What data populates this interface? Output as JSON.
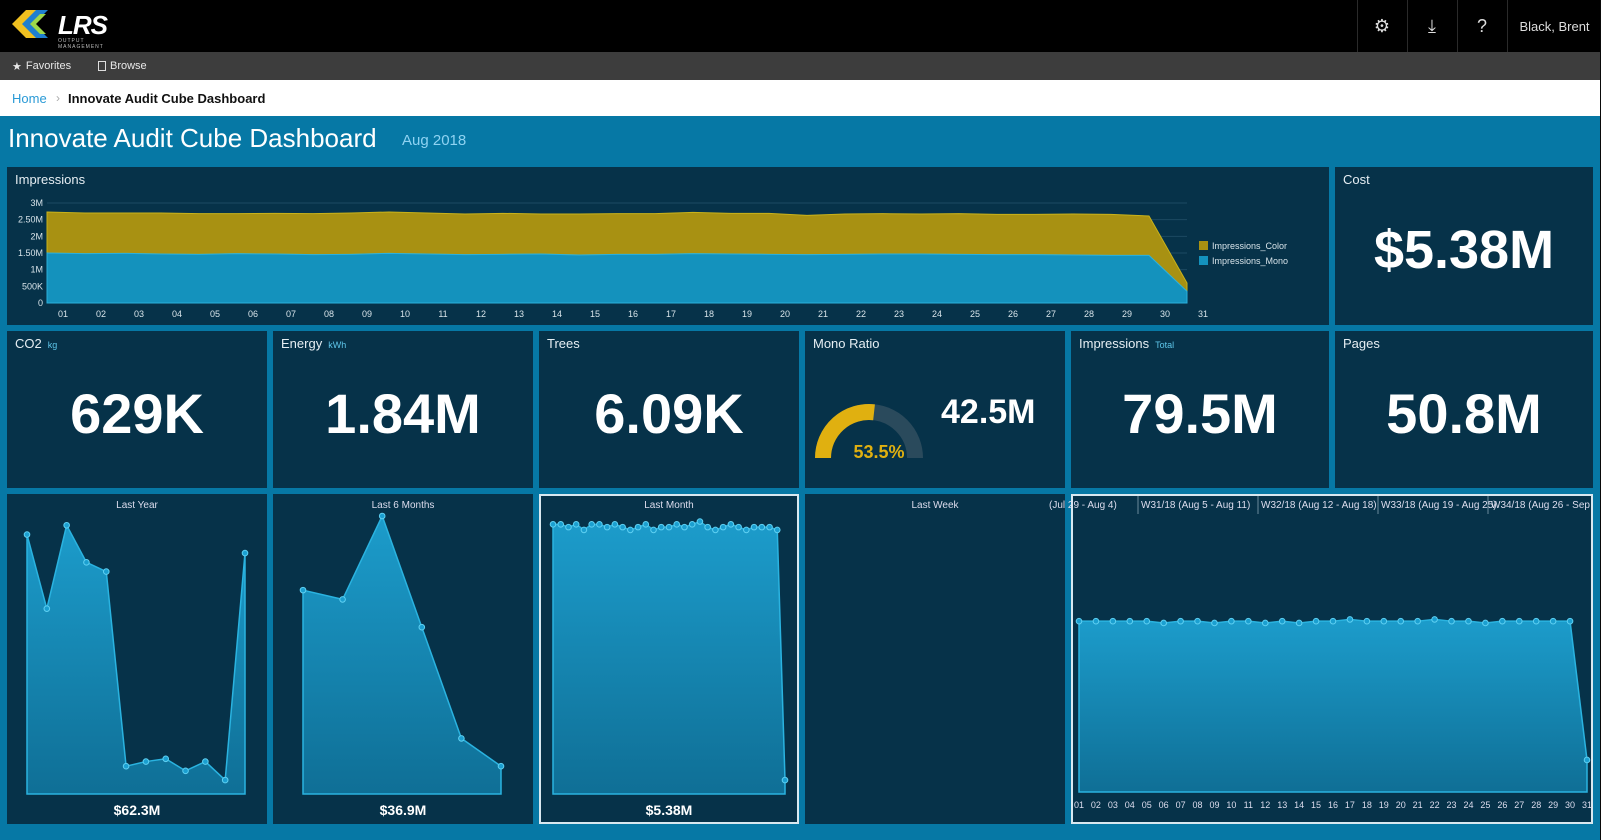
{
  "app": {
    "logo_text": "LRS",
    "logo_subtext": "OUTPUT MANAGEMENT",
    "user_name": "Black, Brent"
  },
  "nav": {
    "favorites": "Favorites",
    "browse": "Browse"
  },
  "breadcrumb": {
    "home": "Home",
    "current": "Innovate Audit Cube Dashboard"
  },
  "dashboard": {
    "title": "Innovate Audit Cube Dashboard",
    "period": "Aug 2018"
  },
  "colors": {
    "accent": "#0678a5",
    "tile": "#063249",
    "mono": "#1492bd",
    "color": "#a89112",
    "gauge": "#e0b010"
  },
  "impressions_chart": {
    "title": "Impressions",
    "legend": [
      "Impressions_Color",
      "Impressions_Mono"
    ]
  },
  "cost": {
    "title": "Cost",
    "value": "$5.38M"
  },
  "kpis": {
    "co2": {
      "title": "CO2",
      "unit": "kg",
      "value": "629K"
    },
    "energy": {
      "title": "Energy",
      "unit": "kWh",
      "value": "1.84M"
    },
    "trees": {
      "title": "Trees",
      "value": "6.09K"
    },
    "mono_ratio": {
      "title": "Mono Ratio",
      "percent_label": "53.5%",
      "value": "42.5M"
    },
    "impressions": {
      "title": "Impressions",
      "unit": "Total",
      "value": "79.5M"
    },
    "pages": {
      "title": "Pages",
      "value": "50.8M"
    }
  },
  "sparks": {
    "last_year": {
      "title": "Last Year",
      "total": "$62.3M"
    },
    "last_6_months": {
      "title": "Last 6 Months",
      "total": "$36.9M"
    },
    "last_month": {
      "title": "Last Month",
      "total": "$5.38M"
    },
    "last_week": {
      "title": "Last Week"
    }
  },
  "weekly": {
    "headers": [
      "(Jul 29 - Aug 4)",
      "W31/18 (Aug 5 - Aug 11)",
      "W32/18 (Aug 12 - Aug 18)",
      "W33/18 (Aug 19 - Aug 25)",
      "W34/18 (Aug 26 - Sep"
    ],
    "days": [
      "01",
      "02",
      "03",
      "04",
      "05",
      "06",
      "07",
      "08",
      "09",
      "10",
      "11",
      "12",
      "13",
      "14",
      "15",
      "16",
      "17",
      "18",
      "19",
      "20",
      "21",
      "22",
      "23",
      "24",
      "25",
      "26",
      "27",
      "28",
      "29",
      "30",
      "31"
    ]
  },
  "chart_data": [
    {
      "type": "area",
      "title": "Impressions",
      "x": [
        "01",
        "02",
        "03",
        "04",
        "05",
        "06",
        "07",
        "08",
        "09",
        "10",
        "11",
        "12",
        "13",
        "14",
        "15",
        "16",
        "17",
        "18",
        "19",
        "20",
        "21",
        "22",
        "23",
        "24",
        "25",
        "26",
        "27",
        "28",
        "29",
        "30",
        "31"
      ],
      "y_ticks": [
        "0",
        "500K",
        "1M",
        "1.50M",
        "2M",
        "2.50M",
        "3M"
      ],
      "ylim": [
        0,
        3000000
      ],
      "stacked": true,
      "legend_position": "right",
      "series": [
        {
          "name": "Impressions_Mono",
          "values": [
            1500000,
            1480000,
            1490000,
            1470000,
            1460000,
            1480000,
            1470000,
            1450000,
            1460000,
            1490000,
            1470000,
            1450000,
            1460000,
            1470000,
            1440000,
            1460000,
            1460000,
            1480000,
            1470000,
            1460000,
            1450000,
            1460000,
            1470000,
            1470000,
            1460000,
            1450000,
            1450000,
            1440000,
            1430000,
            1430000,
            350000
          ]
        },
        {
          "name": "Impressions_Color",
          "values": [
            1230000,
            1220000,
            1210000,
            1230000,
            1220000,
            1200000,
            1220000,
            1230000,
            1240000,
            1240000,
            1230000,
            1220000,
            1230000,
            1200000,
            1230000,
            1220000,
            1220000,
            1240000,
            1220000,
            1230000,
            1180000,
            1210000,
            1210000,
            1200000,
            1220000,
            1210000,
            1210000,
            1230000,
            1230000,
            1180000,
            250000
          ]
        }
      ]
    },
    {
      "type": "area",
      "title": "Last Year",
      "values": [
        2.8,
        2.0,
        2.9,
        2.5,
        2.4,
        0.3,
        0.35,
        0.38,
        0.25,
        0.35,
        0.15,
        2.6
      ]
    },
    {
      "type": "area",
      "title": "Last 6 Months",
      "values": [
        2.2,
        2.1,
        3.0,
        1.8,
        0.6,
        0.3
      ]
    },
    {
      "type": "area",
      "title": "Last Month",
      "values": [
        0.97,
        0.97,
        0.96,
        0.97,
        0.95,
        0.97,
        0.97,
        0.96,
        0.97,
        0.96,
        0.95,
        0.96,
        0.97,
        0.95,
        0.96,
        0.96,
        0.97,
        0.96,
        0.97,
        0.98,
        0.96,
        0.95,
        0.96,
        0.97,
        0.96,
        0.95,
        0.96,
        0.96,
        0.96,
        0.95,
        0.05
      ]
    },
    {
      "type": "area",
      "title": "Weekly",
      "values": [
        0.96,
        0.96,
        0.96,
        0.96,
        0.96,
        0.95,
        0.96,
        0.96,
        0.95,
        0.96,
        0.96,
        0.95,
        0.96,
        0.95,
        0.96,
        0.96,
        0.97,
        0.96,
        0.96,
        0.96,
        0.96,
        0.97,
        0.96,
        0.96,
        0.95,
        0.96,
        0.96,
        0.96,
        0.96,
        0.96,
        0.18
      ]
    },
    {
      "type": "pie",
      "title": "Mono Ratio",
      "value_percent": 53.5
    }
  ]
}
